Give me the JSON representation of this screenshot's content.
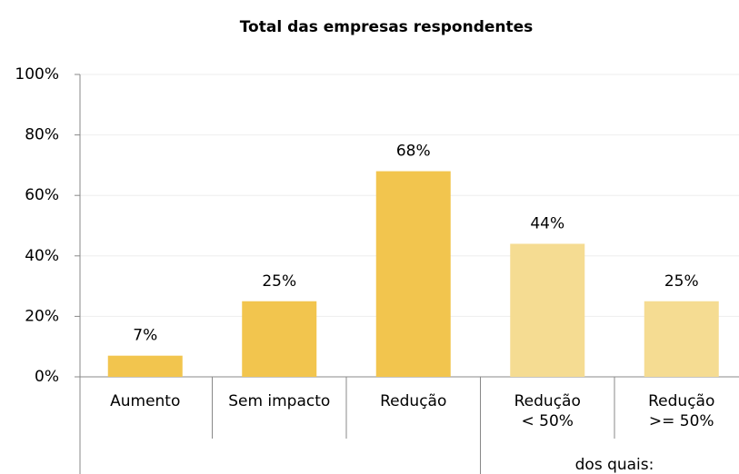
{
  "chart_data": {
    "type": "bar",
    "title": "Total das empresas respondentes",
    "categories": [
      "Aumento",
      "Sem impacto",
      "Redução",
      "Redução\n< 50%",
      "Redução\n>= 50%"
    ],
    "values": [
      7,
      25,
      68,
      44,
      25
    ],
    "value_labels": [
      "7%",
      "25%",
      "68%",
      "44%",
      "25%"
    ],
    "colors": [
      "#f2c54e",
      "#f2c54e",
      "#f2c54e",
      "#f5dc92",
      "#f5dc92"
    ],
    "ylim": [
      0,
      100
    ],
    "yticks": [
      {
        "value": 0,
        "label": "0%"
      },
      {
        "value": 20,
        "label": "20%"
      },
      {
        "value": 40,
        "label": "40%"
      },
      {
        "value": 60,
        "label": "60%"
      },
      {
        "value": 80,
        "label": "80%"
      },
      {
        "value": 100,
        "label": "100%"
      }
    ],
    "grid": true,
    "annotation": "dos quais:"
  }
}
